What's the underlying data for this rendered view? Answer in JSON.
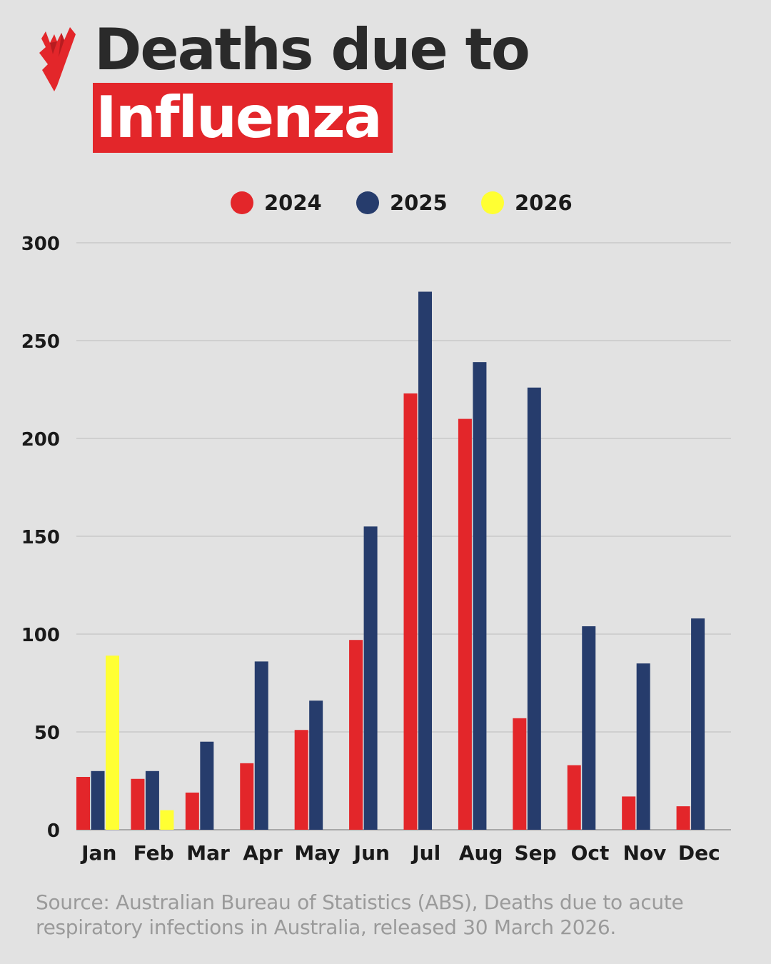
{
  "title": {
    "line1": "Deaths due to",
    "line2": "Influenza"
  },
  "logo": {
    "icon": "sbs-logo-icon",
    "color": "#e3262a"
  },
  "source": "Source: Australian Bureau of Statistics (ABS), Deaths due to acute respiratory infections in Australia, released 30 March 2026.",
  "chart_data": {
    "type": "bar",
    "title": "Deaths due to Influenza",
    "xlabel": "",
    "ylabel": "",
    "categories": [
      "Jan",
      "Feb",
      "Mar",
      "Apr",
      "May",
      "Jun",
      "Jul",
      "Aug",
      "Sep",
      "Oct",
      "Nov",
      "Dec"
    ],
    "series": [
      {
        "name": "2024",
        "color": "#e3262a",
        "values": [
          27,
          26,
          19,
          34,
          51,
          97,
          223,
          210,
          57,
          33,
          17,
          12
        ]
      },
      {
        "name": "2025",
        "color": "#263c6c",
        "values": [
          30,
          30,
          45,
          86,
          66,
          155,
          275,
          239,
          226,
          104,
          85,
          108
        ]
      },
      {
        "name": "2026",
        "color": "#ffff33",
        "values": [
          89,
          10,
          null,
          null,
          null,
          null,
          null,
          null,
          null,
          null,
          null,
          null
        ]
      }
    ],
    "ylim": [
      0,
      300
    ],
    "yticks": [
      "0",
      "50",
      "100",
      "150",
      "200",
      "250",
      "300"
    ],
    "grid": true,
    "legend_position": "top"
  }
}
